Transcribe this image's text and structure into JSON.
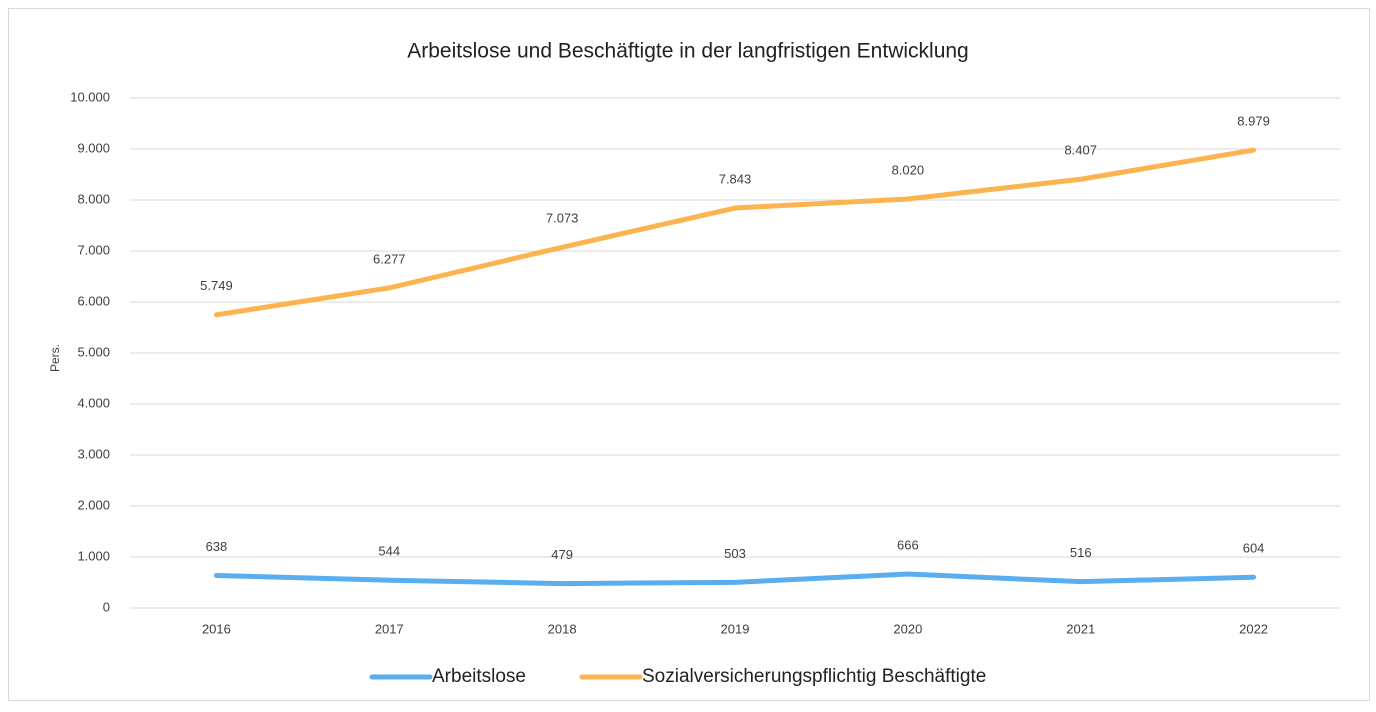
{
  "chart_data": {
    "type": "line",
    "title": "Arbeitslose und Beschäftigte in der langfristigen Entwicklung",
    "y_label": "Pers.",
    "categories": [
      "2016",
      "2017",
      "2018",
      "2019",
      "2020",
      "2021",
      "2022"
    ],
    "series": [
      {
        "name": "Arbeitslose",
        "color": "#5aaef0",
        "values": [
          638,
          544,
          479,
          503,
          666,
          516,
          604
        ],
        "value_labels": [
          "638",
          "544",
          "479",
          "503",
          "666",
          "516",
          "604"
        ]
      },
      {
        "name": "Sozialversicherungspflichtig Beschäftigte",
        "color": "#fbb44f",
        "values": [
          5749,
          6277,
          7073,
          7843,
          8020,
          8407,
          8979
        ],
        "value_labels": [
          "5.749",
          "6.277",
          "7.073",
          "7.843",
          "8.020",
          "8.407",
          "8.979"
        ]
      }
    ],
    "ylim": [
      0,
      10000
    ],
    "yticks": [
      0,
      {
        "value": 1000,
        "label": "1.000"
      },
      {
        "value": 2000,
        "label": "2.000"
      },
      {
        "value": 3000,
        "label": "3.000"
      },
      {
        "value": 4000,
        "label": "4.000"
      },
      {
        "value": 5000,
        "label": "5.000"
      },
      {
        "value": 6000,
        "label": "6.000"
      },
      {
        "value": 7000,
        "label": "7.000"
      },
      {
        "value": 8000,
        "label": "8.000"
      },
      {
        "value": 9000,
        "label": "9.000"
      },
      {
        "value": 10000,
        "label": "10.000"
      }
    ],
    "grid": true,
    "legend": "bottom"
  }
}
